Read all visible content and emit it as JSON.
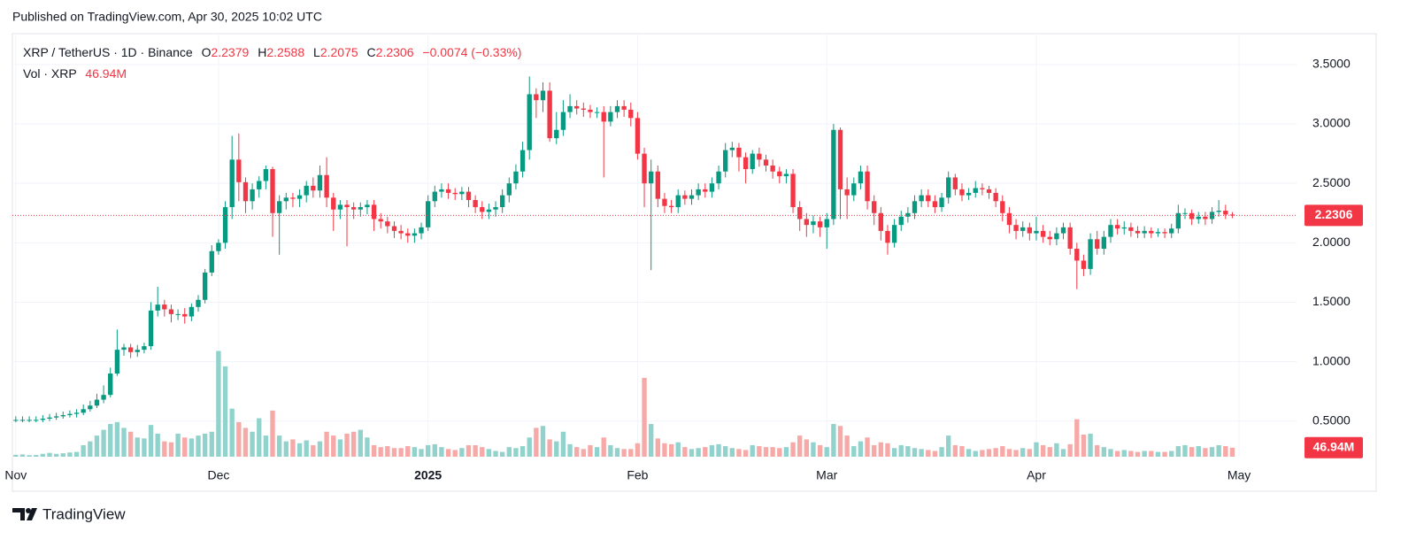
{
  "published": "Published on TradingView.com, Apr 30, 2025 10:02 UTC",
  "brand": "TradingView",
  "chart_data": {
    "type": "candlestick",
    "symbol": "XRP / TetherUS · 1D · Binance",
    "ohlc_labels": [
      "O",
      "H",
      "L",
      "C"
    ],
    "legend_change": "−0.0074 (−0.33%)",
    "volume_title": "Vol · XRP",
    "volume_label": "46.94M",
    "up_color": "#089981",
    "down_color": "#f23645",
    "volume_up_color": "#92d2cc",
    "volume_down_color": "#f7a9a7",
    "grid": true,
    "xlim": [
      -0.5,
      189.5
    ],
    "xticks": [
      {
        "value": 0,
        "label": "Nov"
      },
      {
        "value": 30,
        "label": "Dec"
      },
      {
        "value": 61,
        "label": "2025"
      },
      {
        "value": 92,
        "label": "Feb"
      },
      {
        "value": 120,
        "label": "Mar"
      },
      {
        "value": 151,
        "label": "Apr"
      },
      {
        "value": 181,
        "label": "May"
      }
    ],
    "ylim": [
      0.2,
      3.76
    ],
    "yticks": [
      {
        "value": 0.5,
        "label": "0.5000"
      },
      {
        "value": 1,
        "label": "1.0000"
      },
      {
        "value": 1.5,
        "label": "1.5000"
      },
      {
        "value": 2,
        "label": "2.0000"
      },
      {
        "value": 2.5,
        "label": "2.5000"
      },
      {
        "value": 3,
        "label": "3.0000"
      },
      {
        "value": 3.5,
        "label": "3.5000"
      }
    ],
    "y2lim": [
      0,
      2200
    ],
    "open": [
      0.51,
      0.51,
      0.51,
      0.51,
      0.51,
      0.52,
      0.53,
      0.54,
      0.55,
      0.56,
      0.57,
      0.6,
      0.63,
      0.68,
      0.72,
      0.9,
      1.1,
      1.12,
      1.08,
      1.1,
      1.13,
      1.43,
      1.48,
      1.44,
      1.4,
      1.4,
      1.38,
      1.46,
      1.52,
      1.75,
      1.93,
      2.0,
      2.3,
      2.7,
      2.51,
      2.35,
      2.45,
      2.52,
      2.62,
      2.25,
      2.35,
      2.38,
      2.37,
      2.4,
      2.48,
      2.44,
      2.57,
      2.38,
      2.28,
      2.32,
      2.3,
      2.28,
      2.3,
      2.32,
      2.2,
      2.18,
      2.14,
      2.1,
      2.08,
      2.06,
      2.08,
      2.13,
      2.35,
      2.43,
      2.45,
      2.42,
      2.41,
      2.43,
      2.36,
      2.3,
      2.26,
      2.28,
      2.3,
      2.4,
      2.5,
      2.6,
      2.78,
      3.25,
      3.2,
      3.28,
      2.88,
      2.95,
      3.1,
      3.15,
      3.13,
      3.12,
      3.1,
      3.1,
      3.02,
      3.1,
      3.15,
      3.12,
      3.05,
      2.75,
      2.5,
      2.6,
      2.37,
      2.31,
      2.3,
      2.4,
      2.37,
      2.4,
      2.45,
      2.43,
      2.5,
      2.6,
      2.78,
      2.8,
      2.72,
      2.62,
      2.75,
      2.7,
      2.65,
      2.6,
      2.56,
      2.58,
      2.3,
      2.2,
      2.15,
      2.18,
      2.13,
      2.2,
      2.95,
      2.45,
      2.4,
      2.5,
      2.6,
      2.35,
      2.25,
      2.1,
      2.0,
      2.15,
      2.22,
      2.25,
      2.35,
      2.4,
      2.35,
      2.3,
      2.38,
      2.55,
      2.45,
      2.4,
      2.42,
      2.46,
      2.45,
      2.42,
      2.35,
      2.25,
      2.15,
      2.1,
      2.13,
      2.08,
      2.1,
      2.05,
      2.03,
      2.08,
      2.13,
      1.95,
      1.85,
      1.78,
      2.03,
      1.95,
      2.05,
      2.15,
      2.12,
      2.13,
      2.1,
      2.08,
      2.1,
      2.08,
      2.09,
      2.08,
      2.12,
      2.25,
      2.25,
      2.2,
      2.22,
      2.2,
      2.26,
      2.27,
      2.2379
    ],
    "high": [
      0.54,
      0.54,
      0.54,
      0.54,
      0.55,
      0.56,
      0.57,
      0.58,
      0.59,
      0.6,
      0.64,
      0.67,
      0.73,
      0.8,
      0.95,
      1.27,
      1.15,
      1.15,
      1.14,
      1.16,
      1.5,
      1.63,
      1.52,
      1.48,
      1.44,
      1.45,
      1.49,
      1.56,
      1.78,
      1.98,
      2.03,
      2.35,
      2.9,
      2.92,
      2.55,
      2.5,
      2.56,
      2.65,
      2.64,
      2.4,
      2.42,
      2.42,
      2.45,
      2.52,
      2.55,
      2.65,
      2.72,
      2.42,
      2.36,
      2.36,
      2.34,
      2.34,
      2.36,
      2.36,
      2.25,
      2.22,
      2.18,
      2.15,
      2.12,
      2.12,
      2.17,
      2.4,
      2.48,
      2.5,
      2.5,
      2.46,
      2.47,
      2.47,
      2.4,
      2.35,
      2.33,
      2.35,
      2.45,
      2.55,
      2.66,
      2.85,
      3.4,
      3.3,
      3.35,
      3.35,
      3.1,
      3.2,
      3.25,
      3.2,
      3.18,
      3.16,
      3.14,
      3.15,
      3.15,
      3.2,
      3.2,
      3.18,
      3.1,
      2.8,
      2.7,
      2.65,
      2.42,
      2.36,
      2.45,
      2.44,
      2.45,
      2.5,
      2.5,
      2.55,
      2.65,
      2.84,
      2.85,
      2.84,
      2.76,
      2.78,
      2.8,
      2.74,
      2.7,
      2.64,
      2.62,
      2.62,
      2.35,
      2.25,
      2.23,
      2.22,
      2.25,
      3.0,
      2.97,
      2.55,
      2.55,
      2.65,
      2.65,
      2.4,
      2.3,
      2.15,
      2.2,
      2.27,
      2.3,
      2.4,
      2.45,
      2.45,
      2.4,
      2.42,
      2.6,
      2.58,
      2.5,
      2.46,
      2.52,
      2.5,
      2.48,
      2.46,
      2.4,
      2.3,
      2.2,
      2.18,
      2.17,
      2.22,
      2.15,
      2.1,
      2.13,
      2.17,
      2.17,
      2.0,
      1.9,
      2.08,
      2.1,
      2.1,
      2.2,
      2.2,
      2.18,
      2.17,
      2.14,
      2.14,
      2.13,
      2.12,
      2.12,
      2.16,
      2.32,
      2.29,
      2.28,
      2.26,
      2.26,
      2.3,
      2.36,
      2.32,
      2.2588
    ],
    "low": [
      0.49,
      0.49,
      0.49,
      0.49,
      0.49,
      0.5,
      0.51,
      0.52,
      0.53,
      0.53,
      0.55,
      0.58,
      0.61,
      0.65,
      0.7,
      0.88,
      1.05,
      1.03,
      1.04,
      1.07,
      1.1,
      1.38,
      1.38,
      1.33,
      1.35,
      1.32,
      1.34,
      1.42,
      1.49,
      1.72,
      1.9,
      1.95,
      2.2,
      2.35,
      2.25,
      2.28,
      2.38,
      2.45,
      2.05,
      1.9,
      2.28,
      2.3,
      2.3,
      2.34,
      2.38,
      2.38,
      2.3,
      2.1,
      2.2,
      1.97,
      2.2,
      2.22,
      2.24,
      2.1,
      2.12,
      2.08,
      2.04,
      2.03,
      2.0,
      2.0,
      2.03,
      2.1,
      2.3,
      2.38,
      2.37,
      2.36,
      2.36,
      2.3,
      2.25,
      2.2,
      2.2,
      2.22,
      2.25,
      2.34,
      2.45,
      2.55,
      2.7,
      3.05,
      3.1,
      2.85,
      2.83,
      2.9,
      3.05,
      3.08,
      3.06,
      3.05,
      3.05,
      2.55,
      2.98,
      3.05,
      3.06,
      2.98,
      2.7,
      2.3,
      1.77,
      2.3,
      2.25,
      2.25,
      2.25,
      2.32,
      2.32,
      2.36,
      2.38,
      2.38,
      2.45,
      2.55,
      2.72,
      2.6,
      2.5,
      2.58,
      2.64,
      2.6,
      2.54,
      2.5,
      2.5,
      2.25,
      2.1,
      2.05,
      2.08,
      2.05,
      1.95,
      2.15,
      2.2,
      2.2,
      2.35,
      2.45,
      2.28,
      2.15,
      2.02,
      1.9,
      1.96,
      2.1,
      2.17,
      2.2,
      2.3,
      2.3,
      2.25,
      2.26,
      2.33,
      2.4,
      2.35,
      2.36,
      2.38,
      2.4,
      2.37,
      2.3,
      2.18,
      2.08,
      2.03,
      2.05,
      2.02,
      2.02,
      2.0,
      1.98,
      1.98,
      2.03,
      1.9,
      1.61,
      1.72,
      1.73,
      1.9,
      1.9,
      2.0,
      2.07,
      2.07,
      2.05,
      2.04,
      2.04,
      2.04,
      2.05,
      2.04,
      2.04,
      2.08,
      2.2,
      2.15,
      2.16,
      2.15,
      2.16,
      2.22,
      2.2,
      2.2075
    ],
    "close": [
      0.51,
      0.51,
      0.51,
      0.51,
      0.52,
      0.53,
      0.54,
      0.55,
      0.56,
      0.57,
      0.6,
      0.63,
      0.68,
      0.72,
      0.9,
      1.1,
      1.12,
      1.08,
      1.1,
      1.13,
      1.43,
      1.48,
      1.44,
      1.4,
      1.4,
      1.38,
      1.46,
      1.52,
      1.75,
      1.93,
      2.0,
      2.3,
      2.7,
      2.51,
      2.35,
      2.45,
      2.52,
      2.62,
      2.25,
      2.35,
      2.38,
      2.37,
      2.4,
      2.48,
      2.44,
      2.57,
      2.38,
      2.28,
      2.32,
      2.3,
      2.28,
      2.3,
      2.32,
      2.2,
      2.18,
      2.14,
      2.1,
      2.08,
      2.06,
      2.08,
      2.13,
      2.35,
      2.43,
      2.45,
      2.42,
      2.41,
      2.43,
      2.36,
      2.3,
      2.26,
      2.28,
      2.3,
      2.4,
      2.5,
      2.6,
      2.78,
      3.25,
      3.2,
      3.28,
      2.88,
      2.95,
      3.1,
      3.15,
      3.13,
      3.12,
      3.1,
      3.1,
      3.02,
      3.1,
      3.15,
      3.12,
      3.05,
      2.75,
      2.5,
      2.6,
      2.37,
      2.31,
      2.3,
      2.4,
      2.37,
      2.4,
      2.45,
      2.43,
      2.5,
      2.6,
      2.78,
      2.8,
      2.72,
      2.62,
      2.75,
      2.7,
      2.65,
      2.6,
      2.56,
      2.58,
      2.3,
      2.2,
      2.15,
      2.18,
      2.13,
      2.2,
      2.95,
      2.45,
      2.4,
      2.5,
      2.6,
      2.35,
      2.25,
      2.1,
      2.0,
      2.15,
      2.22,
      2.25,
      2.35,
      2.4,
      2.35,
      2.3,
      2.38,
      2.55,
      2.45,
      2.4,
      2.42,
      2.46,
      2.45,
      2.42,
      2.35,
      2.25,
      2.15,
      2.1,
      2.13,
      2.08,
      2.1,
      2.05,
      2.03,
      2.08,
      2.13,
      1.95,
      1.85,
      1.78,
      2.03,
      1.95,
      2.05,
      2.15,
      2.12,
      2.13,
      2.1,
      2.08,
      2.1,
      2.08,
      2.09,
      2.08,
      2.12,
      2.25,
      2.25,
      2.2,
      2.22,
      2.2,
      2.26,
      2.27,
      2.2379,
      2.2306
    ],
    "volume": [
      10,
      12,
      8,
      9,
      15,
      20,
      15,
      18,
      22,
      25,
      60,
      80,
      110,
      140,
      170,
      180,
      150,
      130,
      100,
      95,
      165,
      120,
      80,
      75,
      120,
      100,
      95,
      110,
      120,
      130,
      550,
      470,
      250,
      180,
      150,
      130,
      200,
      110,
      240,
      110,
      80,
      90,
      70,
      85,
      60,
      80,
      130,
      110,
      90,
      120,
      130,
      140,
      100,
      60,
      50,
      55,
      45,
      45,
      55,
      50,
      40,
      60,
      65,
      50,
      40,
      35,
      45,
      60,
      60,
      50,
      40,
      30,
      25,
      50,
      45,
      55,
      100,
      150,
      160,
      90,
      80,
      130,
      65,
      50,
      40,
      60,
      50,
      100,
      60,
      45,
      40,
      40,
      70,
      410,
      170,
      95,
      70,
      65,
      75,
      50,
      40,
      45,
      50,
      60,
      65,
      55,
      45,
      40,
      35,
      60,
      55,
      50,
      50,
      45,
      50,
      75,
      110,
      90,
      75,
      60,
      50,
      170,
      160,
      110,
      55,
      80,
      100,
      60,
      75,
      70,
      45,
      60,
      55,
      45,
      40,
      35,
      30,
      50,
      110,
      60,
      55,
      40,
      30,
      35,
      40,
      45,
      55,
      40,
      35,
      45,
      40,
      75,
      60,
      50,
      70,
      40,
      65,
      195,
      115,
      120,
      60,
      50,
      40,
      30,
      35,
      30,
      25,
      30,
      30,
      25,
      25,
      30,
      55,
      60,
      50,
      55,
      45,
      50,
      60,
      55,
      46.94
    ]
  }
}
